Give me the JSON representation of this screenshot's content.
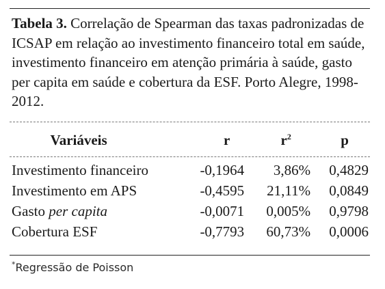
{
  "caption": {
    "label": "Tabela 3.",
    "text": " Correlação de Spearman das taxas padronizadas de ICSAP em relação ao investimento financeiro total em saúde, investimento financeiro em atenção primária à saúde, gasto per capita em saúde e cobertura da ESF. Porto Alegre, 1998-2012."
  },
  "table": {
    "headers": {
      "variables": "Variáveis",
      "r": "r",
      "r2_base": "r",
      "r2_sup": "2",
      "p": "p"
    },
    "rows": [
      {
        "pre": "Investimento financeiro",
        "italic": "",
        "r": "-0,1964",
        "r2": "3,86%",
        "p": "0,4829"
      },
      {
        "pre": "Investimento em APS",
        "italic": "",
        "r": "-0,4595",
        "r2": "21,11%",
        "p": "0,0849"
      },
      {
        "pre": "Gasto ",
        "italic": "per capita",
        "r": "-0,0071",
        "r2": "0,005%",
        "p": "0,9798"
      },
      {
        "pre": "Cobertura ESF",
        "italic": "",
        "r": "-0,7793",
        "r2": "60,73%",
        "p": "0,0006"
      }
    ]
  },
  "footnote": {
    "marker": "*",
    "text": "Regressão de Poisson"
  }
}
